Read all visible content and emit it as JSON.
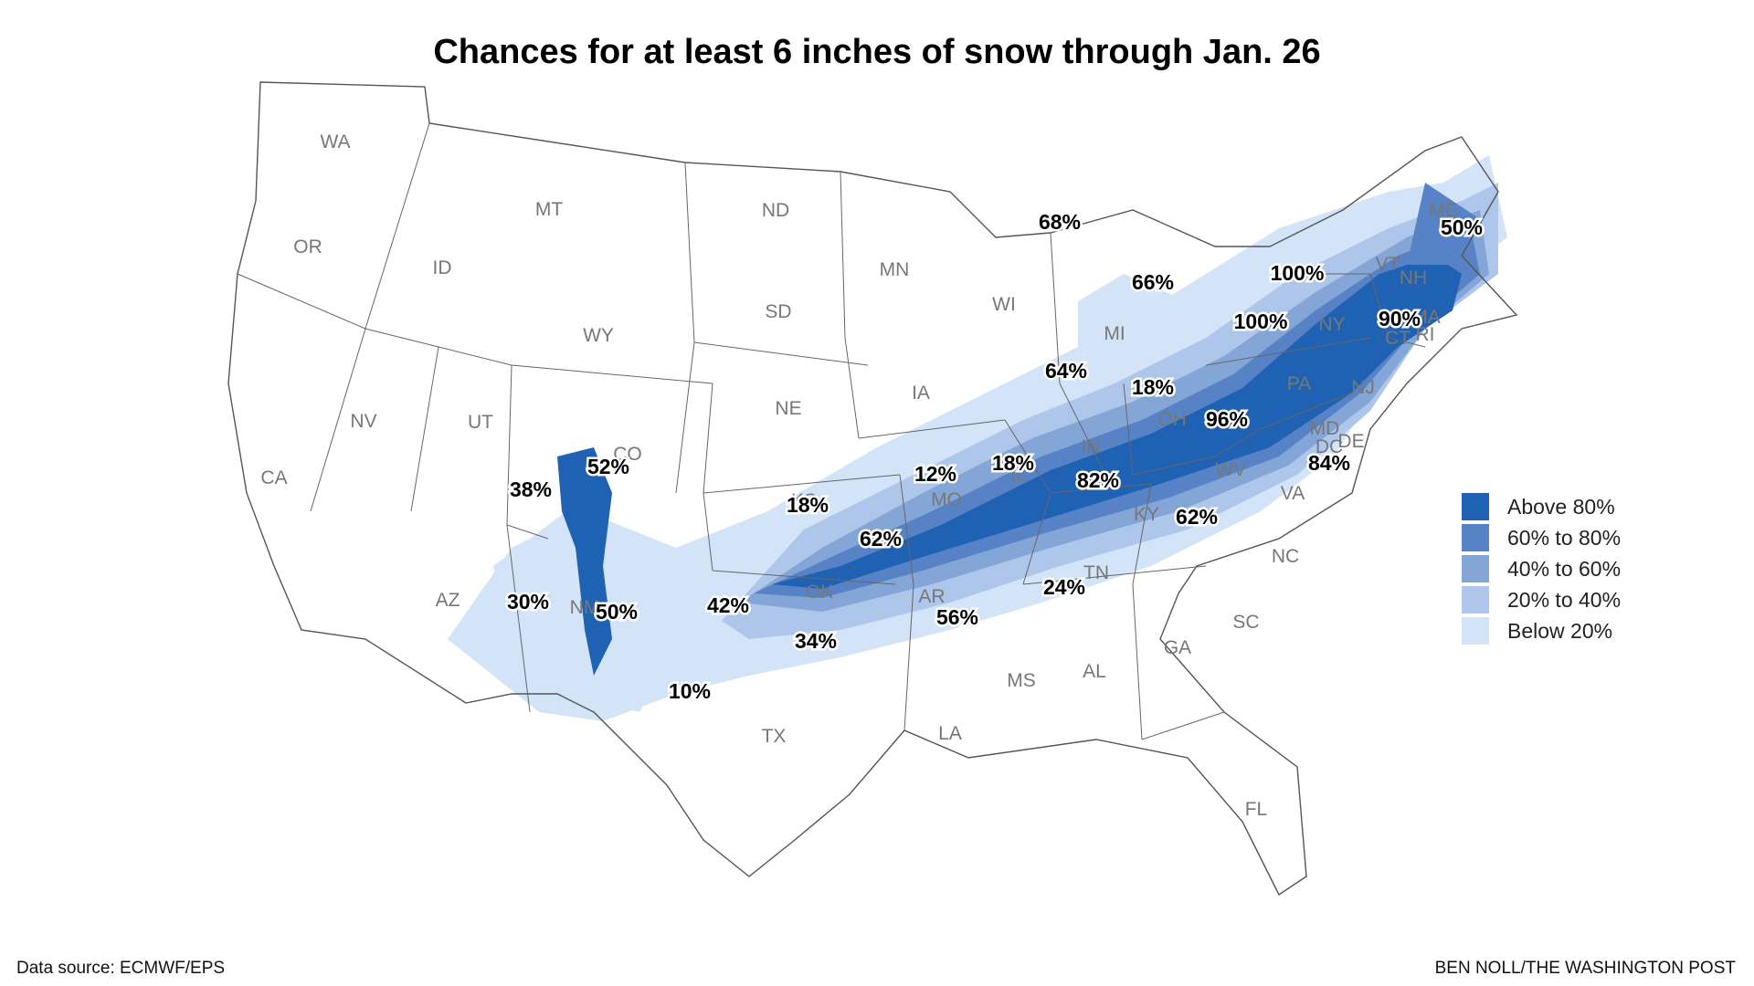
{
  "title": "Chances for at least 6 inches of snow through Jan. 26",
  "colors": {
    "above80": "#1f62b3",
    "p60to80": "#5782c6",
    "p40to60": "#84a6d7",
    "p20to40": "#adc6ea",
    "below20": "#d3e4f8",
    "border": "#555555"
  },
  "legend": [
    {
      "label": "Above 80%",
      "color": "#1f62b3"
    },
    {
      "label": "60% to 80%",
      "color": "#5782c6"
    },
    {
      "label": "40% to 60%",
      "color": "#84a6d7"
    },
    {
      "label": "20% to 40%",
      "color": "#adc6ea"
    },
    {
      "label": "Below 20%",
      "color": "#d3e4f8"
    }
  ],
  "state_labels": [
    "WA",
    "OR",
    "CA",
    "NV",
    "ID",
    "MT",
    "WY",
    "UT",
    "CO",
    "AZ",
    "NM",
    "ND",
    "SD",
    "NE",
    "KS",
    "OK",
    "TX",
    "MN",
    "IA",
    "MO",
    "AR",
    "LA",
    "WI",
    "IL",
    "MI",
    "IN",
    "OH",
    "KY",
    "TN",
    "MS",
    "AL",
    "GA",
    "FL",
    "SC",
    "NC",
    "VA",
    "WV",
    "PA",
    "NY",
    "VT",
    "NH",
    "ME",
    "MA",
    "CT",
    "RI",
    "NJ",
    "DE",
    "MD",
    "DC"
  ],
  "percent_labels": [
    "68%",
    "50%",
    "66%",
    "100%",
    "100%",
    "90%",
    "64%",
    "18%",
    "96%",
    "52%",
    "38%",
    "12%",
    "18%",
    "82%",
    "84%",
    "18%",
    "62%",
    "62%",
    "30%",
    "50%",
    "42%",
    "56%",
    "24%",
    "34%",
    "10%"
  ],
  "source": "Data source: ECMWF/EPS",
  "credit": "BEN NOLL/THE WASHINGTON POST"
}
